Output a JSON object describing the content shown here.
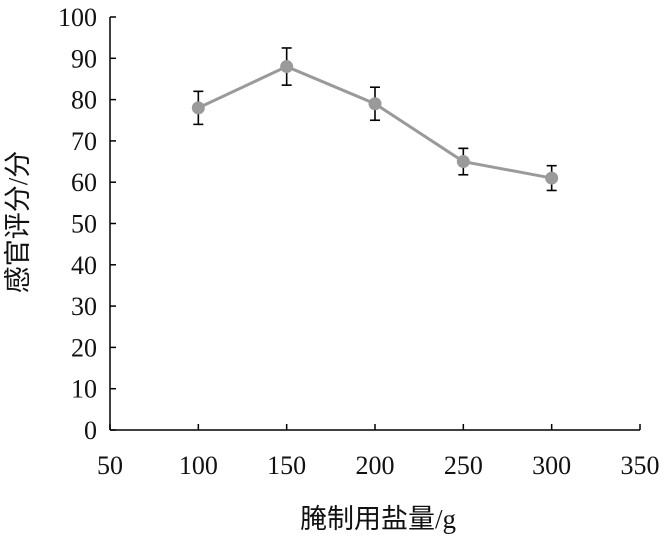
{
  "chart_data": {
    "type": "line",
    "xlabel": "腌制用盐量/g",
    "ylabel": "感官评分/分",
    "xlim": [
      50,
      350
    ],
    "ylim": [
      0,
      100
    ],
    "xticks": [
      50,
      100,
      150,
      200,
      250,
      300,
      350
    ],
    "yticks": [
      0,
      10,
      20,
      30,
      40,
      50,
      60,
      70,
      80,
      90,
      100
    ],
    "grid": false,
    "series": [
      {
        "x": [
          100,
          150,
          200,
          250,
          300
        ],
        "y": [
          78,
          88,
          79,
          65,
          61
        ],
        "error": [
          4,
          4.5,
          4,
          3.2,
          3
        ],
        "color": "#9a9a9a"
      }
    ],
    "axis_color": "#000000"
  }
}
